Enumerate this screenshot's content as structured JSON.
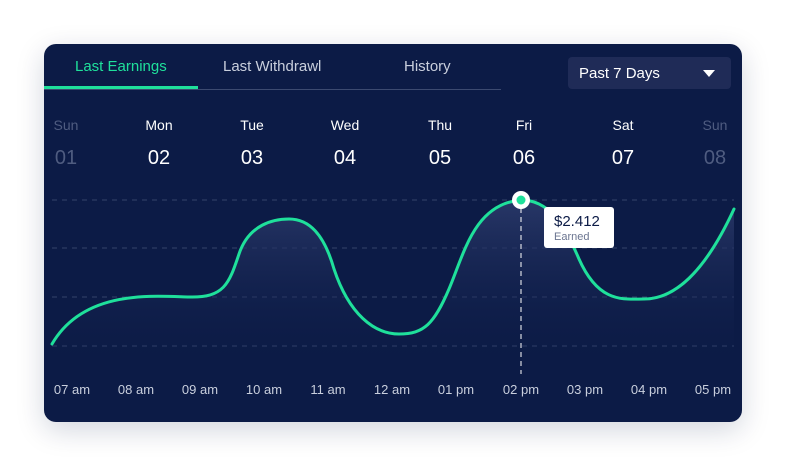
{
  "tabs": [
    {
      "label": "Last Earnings",
      "active": true
    },
    {
      "label": "Last Withdrawl",
      "active": false
    },
    {
      "label": "History",
      "active": false
    }
  ],
  "range_select": {
    "value": "Past 7 Days"
  },
  "days": [
    {
      "name": "Sun",
      "num": "01",
      "faded": true
    },
    {
      "name": "Mon",
      "num": "02",
      "faded": false
    },
    {
      "name": "Tue",
      "num": "03",
      "faded": false
    },
    {
      "name": "Wed",
      "num": "04",
      "faded": false
    },
    {
      "name": "Thu",
      "num": "05",
      "faded": false
    },
    {
      "name": "Fri",
      "num": "06",
      "faded": false
    },
    {
      "name": "Sat",
      "num": "07",
      "faded": false
    },
    {
      "name": "Sun",
      "num": "08",
      "faded": true
    }
  ],
  "time_labels": [
    "07 am",
    "08 am",
    "09 am",
    "10 am",
    "11 am",
    "12 am",
    "01 pm",
    "02 pm",
    "03 pm",
    "04 pm",
    "05 pm"
  ],
  "tooltip": {
    "value": "$2.412",
    "label": "Earned"
  },
  "colors": {
    "background": "#0c1b46",
    "accent": "#1fe09b",
    "dropdown": "#1f2b57"
  }
}
